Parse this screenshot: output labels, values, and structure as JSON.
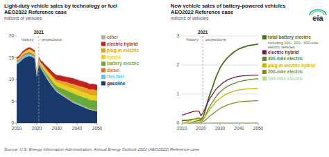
{
  "chart_data": [
    {
      "type": "area",
      "stacked": true,
      "grid": false,
      "title": "Light-duty vehicle sales by technology or fuel",
      "subtitle": "AEO2022 Reference case",
      "ylabel": "millions of vehicles",
      "source": "Source: U.S. Energy Information Administration, Annual Energy Outlook 2022 (AEO2022) Reference case",
      "annotations": [
        {
          "text": "2021",
          "x": 2021
        },
        {
          "text": "history"
        },
        {
          "text": "projections"
        }
      ],
      "x": [
        2010,
        2011,
        2012,
        2013,
        2014,
        2015,
        2016,
        2017,
        2018,
        2019,
        2020,
        2021,
        2022,
        2023,
        2024,
        2025,
        2026,
        2027,
        2028,
        2029,
        2030,
        2031,
        2032,
        2033,
        2034,
        2035,
        2036,
        2037,
        2038,
        2039,
        2040,
        2041,
        2042,
        2043,
        2044,
        2045,
        2046,
        2047,
        2048,
        2049,
        2050
      ],
      "xlim": [
        2010,
        2050
      ],
      "xticks": [
        2010,
        2020,
        2030,
        2040,
        2050
      ],
      "ylim": [
        0,
        20
      ],
      "yticks": [
        0,
        5,
        10,
        15,
        20
      ],
      "series": [
        {
          "name": "gasoline",
          "color": "#1a3a6b",
          "values": [
            13.5,
            13.8,
            14.2,
            14.7,
            15.0,
            15.2,
            15.4,
            15.3,
            15.1,
            14.8,
            10.5,
            13.5,
            12.5,
            11.8,
            11.0,
            10.2,
            9.5,
            8.8,
            8.2,
            7.6,
            7.1,
            6.8,
            6.5,
            6.2,
            5.9,
            5.6,
            5.3,
            5.0,
            4.7,
            4.5,
            4.3,
            4.1,
            3.9,
            3.7,
            3.5,
            3.3,
            3.1,
            3.0,
            2.9,
            2.8,
            2.7
          ]
        },
        {
          "name": "flex fuel",
          "color": "#5bc8f5",
          "values": [
            0.5,
            0.5,
            0.5,
            0.5,
            0.5,
            0.5,
            0.5,
            0.5,
            0.4,
            0.4,
            0.3,
            0.3,
            0.3,
            0.3,
            0.3,
            0.3,
            0.3,
            0.3,
            0.3,
            0.2,
            0.2,
            0.2,
            0.2,
            0.2,
            0.2,
            0.2,
            0.2,
            0.2,
            0.2,
            0.2,
            0.2,
            0.2,
            0.2,
            0.2,
            0.2,
            0.2,
            0.1,
            0.1,
            0.1,
            0.1,
            0.1
          ]
        },
        {
          "name": "diesel",
          "color": "#e07020",
          "values": [
            0.3,
            0.3,
            0.3,
            0.4,
            0.4,
            0.4,
            0.4,
            0.4,
            0.4,
            0.3,
            0.2,
            0.3,
            0.3,
            0.3,
            0.3,
            0.3,
            0.3,
            0.3,
            0.2,
            0.2,
            0.2,
            0.2,
            0.2,
            0.2,
            0.2,
            0.2,
            0.2,
            0.2,
            0.2,
            0.2,
            0.1,
            0.1,
            0.1,
            0.1,
            0.1,
            0.1,
            0.1,
            0.1,
            0.1,
            0.1,
            0.1
          ]
        },
        {
          "name": "battery electric",
          "color": "#6aaa3a",
          "values": [
            0.05,
            0.05,
            0.05,
            0.05,
            0.05,
            0.05,
            0.05,
            0.06,
            0.07,
            0.08,
            0.1,
            0.15,
            0.2,
            0.3,
            0.4,
            0.5,
            0.6,
            0.7,
            0.8,
            0.9,
            1.0,
            1.1,
            1.2,
            1.3,
            1.4,
            1.5,
            1.6,
            1.7,
            1.8,
            1.8,
            1.9,
            1.9,
            2.0,
            2.0,
            2.0,
            2.1,
            2.1,
            2.1,
            2.2,
            2.2,
            2.2
          ]
        },
        {
          "name": "hybrid",
          "color": "#e8d020",
          "values": [
            0.3,
            0.3,
            0.4,
            0.4,
            0.4,
            0.5,
            0.5,
            0.5,
            0.5,
            0.5,
            0.3,
            0.4,
            0.4,
            0.5,
            0.5,
            0.6,
            0.6,
            0.7,
            0.7,
            0.8,
            0.8,
            0.9,
            0.9,
            0.9,
            1.0,
            1.0,
            1.0,
            1.0,
            1.1,
            1.1,
            1.1,
            1.1,
            1.1,
            1.1,
            1.1,
            1.1,
            1.1,
            1.1,
            1.1,
            1.1,
            1.1
          ]
        },
        {
          "name": "plug-in electric",
          "color": "#e8a020",
          "values": [
            0.02,
            0.02,
            0.03,
            0.05,
            0.08,
            0.1,
            0.12,
            0.13,
            0.15,
            0.16,
            0.12,
            0.17,
            0.2,
            0.25,
            0.3,
            0.35,
            0.4,
            0.45,
            0.5,
            0.55,
            0.6,
            0.65,
            0.7,
            0.75,
            0.8,
            0.85,
            0.9,
            0.95,
            1.0,
            1.0,
            1.1,
            1.1,
            1.1,
            1.2,
            1.2,
            1.2,
            1.2,
            1.3,
            1.3,
            1.3,
            1.3
          ]
        },
        {
          "name": "electric hybrid",
          "color": "#c42020",
          "values": [
            0.4,
            0.4,
            0.4,
            0.4,
            0.4,
            0.4,
            0.4,
            0.4,
            0.4,
            0.4,
            0.3,
            0.4,
            0.5,
            0.6,
            0.7,
            0.8,
            0.9,
            0.9,
            1.0,
            1.0,
            1.1,
            1.1,
            1.2,
            1.2,
            1.2,
            1.2,
            1.3,
            1.3,
            1.3,
            1.3,
            1.3,
            1.3,
            1.3,
            1.3,
            1.3,
            1.3,
            1.3,
            1.3,
            1.3,
            1.3,
            1.3
          ]
        },
        {
          "name": "other",
          "color": "#b0b0a8",
          "values": [
            0.1,
            0.1,
            0.1,
            0.1,
            0.1,
            0.1,
            0.1,
            0.1,
            0.1,
            0.1,
            0.1,
            0.1,
            0.1,
            0.1,
            0.1,
            0.1,
            0.1,
            0.1,
            0.1,
            0.1,
            0.1,
            0.1,
            0.1,
            0.1,
            0.1,
            0.1,
            0.1,
            0.1,
            0.1,
            0.1,
            0.1,
            0.1,
            0.1,
            0.1,
            0.1,
            0.1,
            0.1,
            0.1,
            0.1,
            0.1,
            0.1
          ]
        }
      ]
    },
    {
      "type": "line",
      "grid": true,
      "title": "New vehicle sales of battery-powered vehicles",
      "subtitle": "AEO2022 Reference case",
      "ylabel": "millions of vehicles",
      "logo": "eia",
      "annotations": [
        {
          "text": "2021",
          "x": 2021
        },
        {
          "text": "history"
        },
        {
          "text": "projections"
        }
      ],
      "x": [
        2010,
        2011,
        2012,
        2013,
        2014,
        2015,
        2016,
        2017,
        2018,
        2019,
        2020,
        2021,
        2022,
        2023,
        2024,
        2025,
        2026,
        2027,
        2028,
        2029,
        2030,
        2031,
        2032,
        2033,
        2034,
        2035,
        2036,
        2037,
        2038,
        2039,
        2040,
        2041,
        2042,
        2043,
        2044,
        2045,
        2046,
        2047,
        2048,
        2049,
        2050
      ],
      "xlim": [
        2010,
        2050
      ],
      "xticks": [
        2010,
        2020,
        2030,
        2040,
        2050
      ],
      "ylim": [
        0,
        3
      ],
      "yticks": [
        0,
        1,
        2,
        3
      ],
      "series": [
        {
          "name": "total battery electric",
          "note": "including 100-, 200-, 300-mile\nelectric vehicles",
          "color": "#4a6e1a",
          "values": [
            0.08,
            0.09,
            0.1,
            0.1,
            0.11,
            0.12,
            0.13,
            0.14,
            0.16,
            0.17,
            0.13,
            0.19,
            0.38,
            0.62,
            0.85,
            1.05,
            1.22,
            1.42,
            1.6,
            1.75,
            1.9,
            2.0,
            2.1,
            2.18,
            2.26,
            2.32,
            2.38,
            2.43,
            2.48,
            2.52,
            2.56,
            2.58,
            2.61,
            2.63,
            2.65,
            2.67,
            2.68,
            2.69,
            2.7,
            2.71,
            2.72
          ]
        },
        {
          "name": "electric hybrid",
          "color": "#7b1a3a",
          "values": [
            0.28,
            0.29,
            0.32,
            0.33,
            0.36,
            0.38,
            0.4,
            0.41,
            0.42,
            0.41,
            0.25,
            0.35,
            0.48,
            0.62,
            0.76,
            0.88,
            0.98,
            1.08,
            1.17,
            1.24,
            1.3,
            1.36,
            1.41,
            1.45,
            1.49,
            1.52,
            1.54,
            1.56,
            1.58,
            1.6,
            1.61,
            1.62,
            1.63,
            1.63,
            1.64,
            1.64,
            1.64,
            1.65,
            1.65,
            1.65,
            1.65
          ]
        },
        {
          "name": "300-mile electric",
          "color": "#5a8a28",
          "values": [
            0.005,
            0.005,
            0.01,
            0.015,
            0.02,
            0.03,
            0.04,
            0.06,
            0.08,
            0.09,
            0.07,
            0.11,
            0.22,
            0.36,
            0.5,
            0.62,
            0.72,
            0.82,
            0.92,
            1.0,
            1.07,
            1.13,
            1.18,
            1.23,
            1.27,
            1.3,
            1.33,
            1.36,
            1.38,
            1.41,
            1.43,
            1.44,
            1.46,
            1.47,
            1.48,
            1.49,
            1.5,
            1.51,
            1.52,
            1.52,
            1.53
          ]
        },
        {
          "name": "plug-in electric hybrid",
          "color": "#c8b400",
          "values": [
            0.02,
            0.02,
            0.03,
            0.05,
            0.08,
            0.1,
            0.12,
            0.13,
            0.14,
            0.15,
            0.09,
            0.14,
            0.2,
            0.3,
            0.4,
            0.5,
            0.58,
            0.66,
            0.74,
            0.8,
            0.86,
            0.9,
            0.95,
            0.99,
            1.02,
            1.05,
            1.07,
            1.09,
            1.11,
            1.13,
            1.14,
            1.15,
            1.16,
            1.17,
            1.17,
            1.18,
            1.18,
            1.19,
            1.19,
            1.19,
            1.2
          ]
        },
        {
          "name": "200-mile electric",
          "color": "#8a8a20",
          "values": [
            0.005,
            0.005,
            0.01,
            0.01,
            0.01,
            0.015,
            0.02,
            0.02,
            0.03,
            0.04,
            0.035,
            0.05,
            0.09,
            0.14,
            0.2,
            0.26,
            0.31,
            0.36,
            0.41,
            0.46,
            0.5,
            0.54,
            0.57,
            0.6,
            0.63,
            0.65,
            0.67,
            0.69,
            0.7,
            0.72,
            0.73,
            0.74,
            0.74,
            0.75,
            0.75,
            0.76,
            0.76,
            0.76,
            0.77,
            0.77,
            0.77
          ]
        },
        {
          "name": "100-mile electric",
          "color": "#b8d8a0",
          "values": [
            0.005,
            0.005,
            0.005,
            0.005,
            0.005,
            0.005,
            0.005,
            0.005,
            0.005,
            0.005,
            0.005,
            0.005,
            0.005,
            0.005,
            0.01,
            0.015,
            0.02,
            0.02,
            0.02,
            0.02,
            0.02,
            0.02,
            0.02,
            0.02,
            0.02,
            0.02,
            0.02,
            0.02,
            0.02,
            0.02,
            0.02,
            0.02,
            0.02,
            0.02,
            0.02,
            0.02,
            0.02,
            0.02,
            0.02,
            0.02,
            0.02
          ]
        }
      ]
    }
  ]
}
